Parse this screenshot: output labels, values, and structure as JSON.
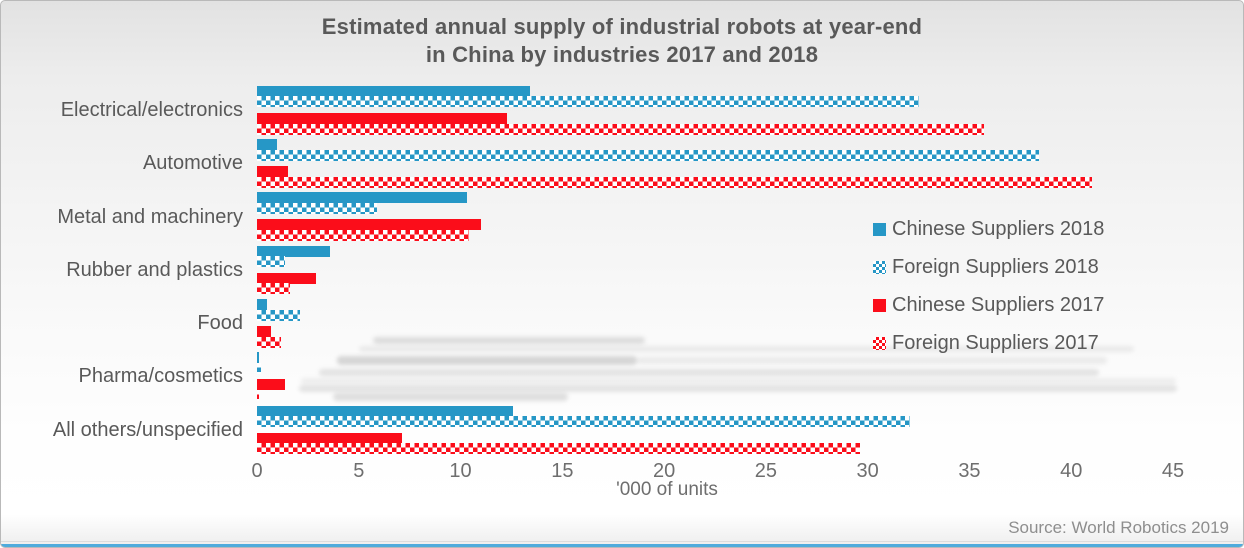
{
  "title": {
    "line1": "Estimated annual supply of industrial robots at year-end",
    "line2": "in China by industries 2017 and 2018"
  },
  "source": "Source: World Robotics 2019",
  "colors": {
    "chinese_blue": "#2697c6",
    "foreign_blue": "#2697c6",
    "chinese_red": "#fb0d1a",
    "foreign_red": "#fb0d1a",
    "title_text": "#595959",
    "axis_text": "#6e6e6e",
    "source_text": "#8e8e8e",
    "bottom_accent": "#4fabdc"
  },
  "chart_data": {
    "type": "bar",
    "orientation": "horizontal",
    "title": "Estimated annual supply of industrial robots at year-end in China by industries 2017 and 2018",
    "xlabel": "'000 of units",
    "ylabel": "",
    "xlim": [
      0,
      45
    ],
    "xticks": [
      0,
      5,
      10,
      15,
      20,
      25,
      30,
      35,
      40,
      45
    ],
    "grid": false,
    "legend_position": "middle-right",
    "categories": [
      "Electrical/electronics",
      "Automotive",
      "Metal and machinery",
      "Rubber and plastics",
      "Food",
      "Pharma/cosmetics",
      "All others/unspecified"
    ],
    "series": [
      {
        "name": "Chinese Suppliers 2018",
        "color": "#2697c6",
        "pattern": "solid",
        "values": [
          13.4,
          1.0,
          10.3,
          3.6,
          0.5,
          0.1,
          12.6
        ]
      },
      {
        "name": "Foreign Suppliers 2018",
        "color": "#2697c6",
        "pattern": "checker",
        "values": [
          32.5,
          38.4,
          5.9,
          1.4,
          2.1,
          0.2,
          32.1
        ]
      },
      {
        "name": "Chinese Suppliers 2017",
        "color": "#fb0d1a",
        "pattern": "solid",
        "values": [
          12.3,
          1.5,
          11.0,
          2.9,
          0.7,
          1.4,
          7.1
        ]
      },
      {
        "name": "Foreign Suppliers 2017",
        "color": "#fb0d1a",
        "pattern": "checker",
        "values": [
          35.7,
          41.0,
          10.4,
          1.6,
          1.2,
          0.1,
          29.6
        ]
      }
    ]
  },
  "axis": {
    "unit_label": "'000 of units"
  }
}
